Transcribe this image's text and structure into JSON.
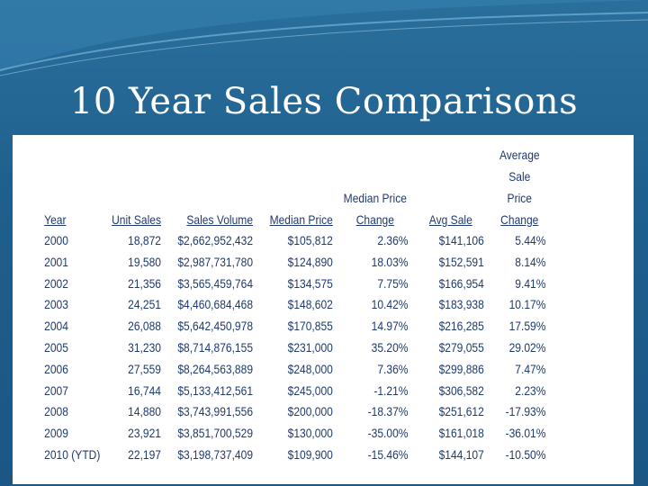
{
  "slide": {
    "title": "10 Year Sales Comparisons",
    "colors": {
      "background": "#1f5f8e",
      "title_text": "#ffffff",
      "table_text": "#1f3a6e"
    }
  },
  "table": {
    "headers": {
      "year": "Year",
      "unit_sales": "Unit Sales",
      "sales_volume": "Sales Volume",
      "median_price": "Median Price",
      "median_price_change": [
        "Median Price",
        "Change"
      ],
      "avg_sale": "Avg Sale",
      "avg_sale_price_change": [
        "Average",
        "Sale",
        "Price",
        "Change"
      ]
    },
    "rows": [
      [
        "2000",
        "18,872",
        "$2,662,952,432",
        "$105,812",
        "2.36%",
        "$141,106",
        "5.44%"
      ],
      [
        "2001",
        "19,580",
        "$2,987,731,780",
        "$124,890",
        "18.03%",
        "$152,591",
        "8.14%"
      ],
      [
        "2002",
        "21,356",
        "$3,565,459,764",
        "$134,575",
        "7.75%",
        "$166,954",
        "9.41%"
      ],
      [
        "2003",
        "24,251",
        "$4,460,684,468",
        "$148,602",
        "10.42%",
        "$183,938",
        "10.17%"
      ],
      [
        "2004",
        "26,088",
        "$5,642,450,978",
        "$170,855",
        "14.97%",
        "$216,285",
        "17.59%"
      ],
      [
        "2005",
        "31,230",
        "$8,714,876,155",
        "$231,000",
        "35.20%",
        "$279,055",
        "29.02%"
      ],
      [
        "2006",
        "27,559",
        "$8,264,563,889",
        "$248,000",
        "7.36%",
        "$299,886",
        "7.47%"
      ],
      [
        "2007",
        "16,744",
        "$5,133,412,561",
        "$245,000",
        "-1.21%",
        "$306,582",
        "2.23%"
      ],
      [
        "2008",
        "14,880",
        "$3,743,991,556",
        "$200,000",
        "-18.37%",
        "$251,612",
        "-17.93%"
      ],
      [
        "2009",
        "23,921",
        "$3,851,700,529",
        "$130,000",
        "-35.00%",
        "$161,018",
        "-36.01%"
      ],
      [
        "2010 (YTD)",
        "22,197",
        "$3,198,737,409",
        "$109,900",
        "-15.46%",
        "$144,107",
        "-10.50%"
      ]
    ]
  }
}
